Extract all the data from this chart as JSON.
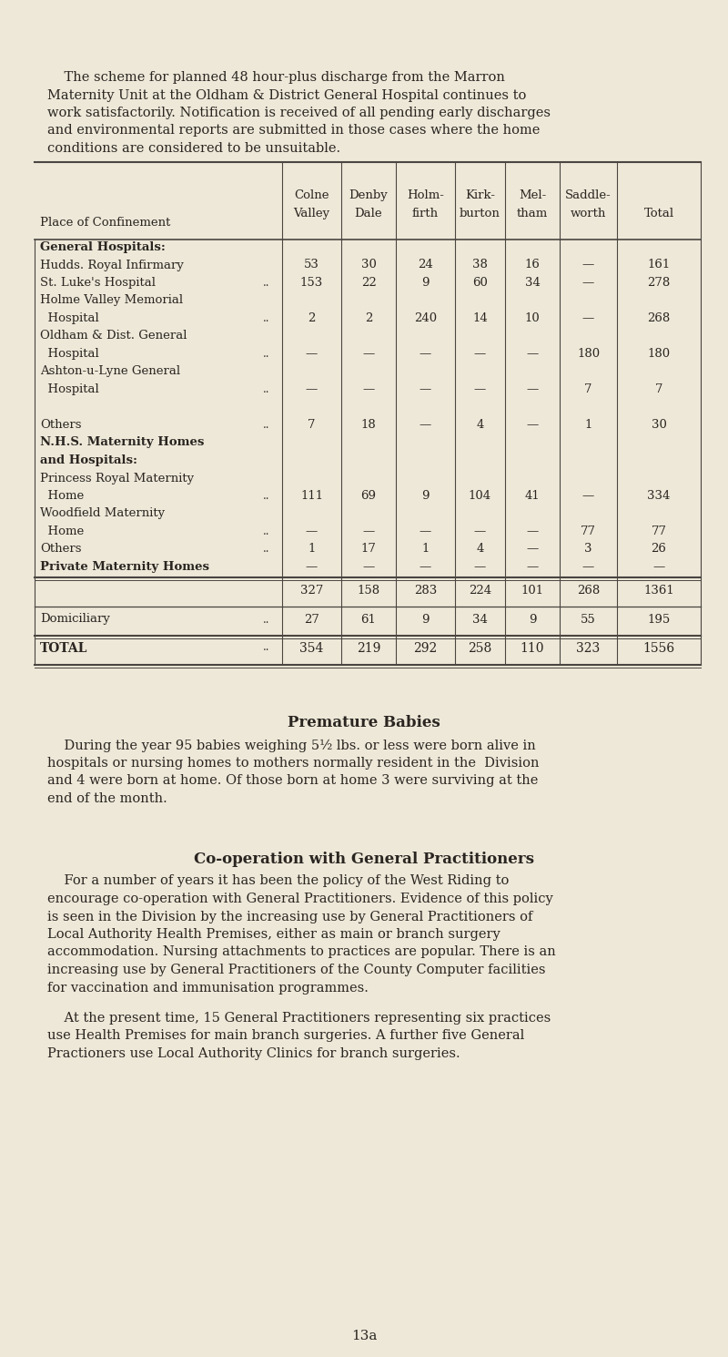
{
  "bg_color": "#ede8d8",
  "text_color": "#2a2520",
  "fig_w": 8.0,
  "fig_h": 14.9,
  "dpi": 100,
  "intro_lines": [
    "    The scheme for planned 48 hour-plus discharge from the Marron",
    "Maternity Unit at the Oldham & District General Hospital continues to",
    "work satisfactorily. Notification is received of all pending early discharges",
    "and environmental reports are submitted in those cases where the home",
    "conditions are considered to be unsuitable."
  ],
  "col_headers": [
    [
      "Colne",
      "Valley"
    ],
    [
      "Denby",
      "Dale"
    ],
    [
      "Holm-",
      "firth"
    ],
    [
      "Kirk-",
      "burton"
    ],
    [
      "Mel-",
      "tham"
    ],
    [
      "Saddle-",
      "worth"
    ],
    [
      "",
      "Total"
    ]
  ],
  "place_col_header": "Place of Confinement",
  "table_rows": [
    {
      "label": "General Hospitals:",
      "bold": true,
      "dotdot": false,
      "values": [
        "",
        "",
        "",
        "",
        "",
        "",
        ""
      ]
    },
    {
      "label": "Hudds. Royal Infirmary",
      "bold": false,
      "dotdot": false,
      "values": [
        "53",
        "30",
        "24",
        "38",
        "16",
        "—",
        "161"
      ]
    },
    {
      "label": "St. Luke's Hospital",
      "bold": false,
      "dotdot": true,
      "values": [
        "153",
        "22",
        "9",
        "60",
        "34",
        "—",
        "278"
      ]
    },
    {
      "label": "Holme Valley Memorial",
      "bold": false,
      "dotdot": false,
      "values": [
        "",
        "",
        "",
        "",
        "",
        "",
        ""
      ]
    },
    {
      "label": "  Hospital",
      "bold": false,
      "dotdot": true,
      "values": [
        "2",
        "2",
        "240",
        "14",
        "10",
        "—",
        "268"
      ]
    },
    {
      "label": "Oldham & Dist. General",
      "bold": false,
      "dotdot": false,
      "values": [
        "",
        "",
        "",
        "",
        "",
        "",
        ""
      ]
    },
    {
      "label": "  Hospital",
      "bold": false,
      "dotdot": true,
      "values": [
        "—",
        "—",
        "—",
        "—",
        "—",
        "180",
        "180"
      ]
    },
    {
      "label": "Ashton-u-Lyne General",
      "bold": false,
      "dotdot": false,
      "values": [
        "",
        "",
        "",
        "",
        "",
        "",
        ""
      ]
    },
    {
      "label": "  Hospital",
      "bold": false,
      "dotdot": true,
      "values": [
        "—",
        "—",
        "—",
        "—",
        "—",
        "7",
        "7"
      ]
    },
    {
      "label": "",
      "bold": false,
      "dotdot": false,
      "values": [
        "",
        "",
        "",
        "",
        "",
        "",
        ""
      ]
    },
    {
      "label": "Others",
      "bold": false,
      "dotdot": true,
      "values": [
        "7",
        "18",
        "—",
        "4",
        "—",
        "1",
        "30"
      ]
    },
    {
      "label": "N.H.S. Maternity Homes",
      "bold": true,
      "dotdot": false,
      "values": [
        "",
        "",
        "",
        "",
        "",
        "",
        ""
      ]
    },
    {
      "label": "and Hospitals:",
      "bold": true,
      "dotdot": false,
      "values": [
        "",
        "",
        "",
        "",
        "",
        "",
        ""
      ]
    },
    {
      "label": "Princess Royal Maternity",
      "bold": false,
      "dotdot": false,
      "values": [
        "",
        "",
        "",
        "",
        "",
        "",
        ""
      ]
    },
    {
      "label": "  Home",
      "bold": false,
      "dotdot": true,
      "values": [
        "111",
        "69",
        "9",
        "104",
        "41",
        "—",
        "334"
      ]
    },
    {
      "label": "Woodfield Maternity",
      "bold": false,
      "dotdot": false,
      "values": [
        "",
        "",
        "",
        "",
        "",
        "",
        ""
      ]
    },
    {
      "label": "  Home",
      "bold": false,
      "dotdot": true,
      "values": [
        "—",
        "—",
        "—",
        "—",
        "—",
        "77",
        "77"
      ]
    },
    {
      "label": "Others",
      "bold": false,
      "dotdot": true,
      "values": [
        "1",
        "17",
        "1",
        "4",
        "—",
        "3",
        "26"
      ]
    },
    {
      "label": "Private Maternity Homes",
      "bold": true,
      "dotdot": false,
      "values": [
        "—",
        "—",
        "—",
        "—",
        "—",
        "—",
        "—"
      ]
    }
  ],
  "subtotal_row": [
    "327",
    "158",
    "283",
    "224",
    "101",
    "268",
    "1361"
  ],
  "domiciliary_label": "Domiciliary",
  "domiciliary_dotdot": true,
  "domiciliary_row": [
    "27",
    "61",
    "9",
    "34",
    "9",
    "55",
    "195"
  ],
  "total_label": "TOTAL",
  "total_dotdot": true,
  "total_row": [
    "354",
    "219",
    "292",
    "258",
    "110",
    "323",
    "1556"
  ],
  "premature_title": "Premature Babies",
  "premature_lines": [
    "    During the year 95 babies weighing 5½ lbs. or less were born alive in",
    "hospitals or nursing homes to mothers normally resident in the  Division",
    "and 4 were born at home. Of those born at home 3 were surviving at the",
    "end of the month."
  ],
  "coop_title": "Co-operation with General Practitioners",
  "coop_lines1": [
    "    For a number of years it has been the policy of the West Riding to",
    "encourage co-operation with General Practitioners. Evidence of this policy",
    "is seen in the Division by the increasing use by General Practitioners of",
    "Local Authority Health Premises, either as main or branch surgery",
    "accommodation. Nursing attachments to practices are popular. There is an",
    "increasing use by General Practitioners of the County Computer facilities",
    "for vaccination and immunisation programmes."
  ],
  "coop_lines2": [
    "    At the present time, 15 General Practitioners representing six practices",
    "use Health Premises for main branch surgeries. A further five General",
    "Practioners use Local Authority Clinics for branch surgeries."
  ],
  "page_number": "13a"
}
